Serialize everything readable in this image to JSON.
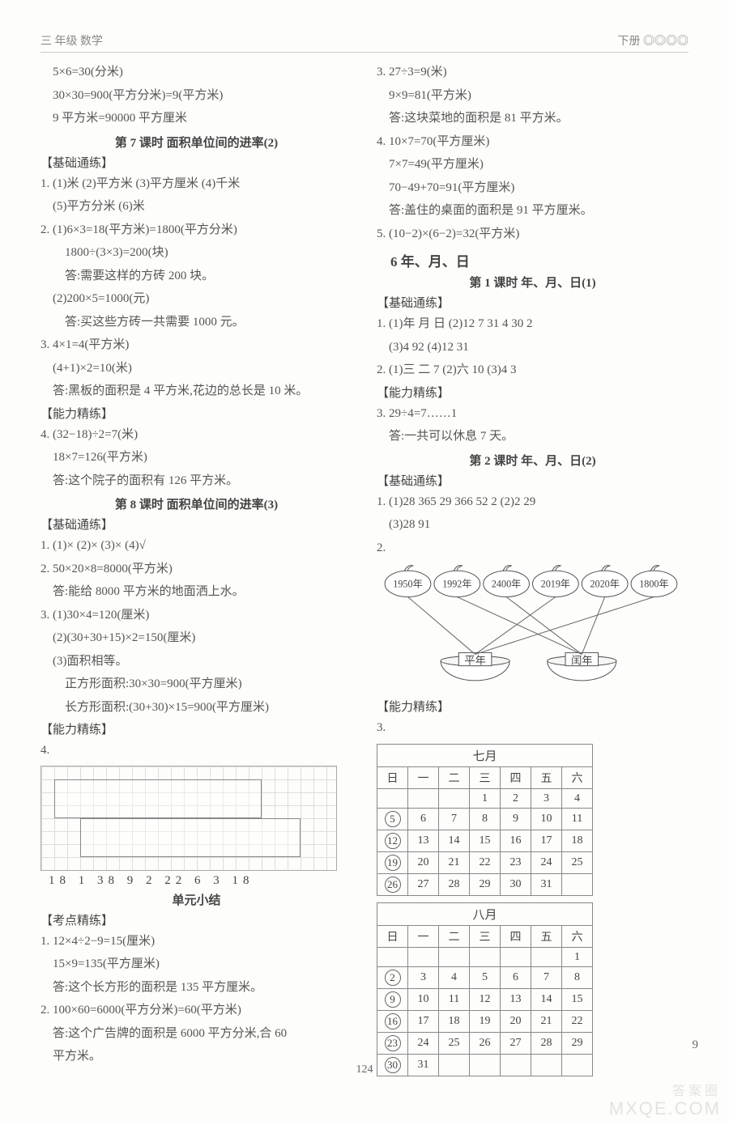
{
  "header": {
    "left": "三  年级  数学",
    "right": "下册 ◎◎◎◎"
  },
  "left_col": {
    "L1": "5×6=30(分米)",
    "L2": "30×30=900(平方分米)=9(平方米)",
    "L3": "9 平方米=90000 平方厘米",
    "S1": "第 7 课时  面积单位间的进率(2)",
    "B1": "【基础通练】",
    "P1": "1. (1)米  (2)平方米  (3)平方厘米  (4)千米",
    "P1b": "(5)平方分米  (6)米",
    "P2": "2. (1)6×3=18(平方米)=1800(平方分米)",
    "P2b": "1800÷(3×3)=200(块)",
    "P2c": "答:需要这样的方砖 200 块。",
    "P2d": "(2)200×5=1000(元)",
    "P2e": "答:买这些方砖一共需要 1000 元。",
    "P3": "3. 4×1=4(平方米)",
    "P3b": "(4+1)×2=10(米)",
    "P3c": "答:黑板的面积是 4 平方米,花边的总长是 10 米。",
    "B2": "【能力精练】",
    "P4": "4. (32−18)÷2=7(米)",
    "P4b": "18×7=126(平方米)",
    "P4c": "答:这个院子的面积有 126 平方米。",
    "S2": "第 8 课时  面积单位间的进率(3)",
    "B3": "【基础通练】",
    "Q1": "1. (1)×  (2)×  (3)×  (4)√",
    "Q2": "2. 50×20×8=8000(平方米)",
    "Q2b": "答:能给 8000 平方米的地面洒上水。",
    "Q3": "3. (1)30×4=120(厘米)",
    "Q3b": "(2)(30+30+15)×2=150(厘米)",
    "Q3c": "(3)面积相等。",
    "Q3d": "正方形面积:30×30=900(平方厘米)",
    "Q3e": "长方形面积:(30+30)×15=900(平方厘米)",
    "B4": "【能力精练】",
    "Q4": "4.",
    "strip": "18  1  38  9  2  22  6  3  18",
    "S3": "单元小结",
    "B5": "【考点精练】",
    "R1": "1. 12×4÷2−9=15(厘米)",
    "R1b": "15×9=135(平方厘米)",
    "R1c": "答:这个长方形的面积是 135 平方厘米。",
    "R2": "2. 100×60=6000(平方分米)=60(平方米)",
    "R2b": "答:这个广告牌的面积是 6000 平方分米,合 60",
    "R2c": "平方米。"
  },
  "right_col": {
    "T1": "3. 27÷3=9(米)",
    "T1b": "9×9=81(平方米)",
    "T1c": "答:这块菜地的面积是 81 平方米。",
    "T2": "4. 10×7=70(平方厘米)",
    "T2b": "7×7=49(平方厘米)",
    "T2c": "70−49+70=91(平方厘米)",
    "T2d": "答:盖住的桌面的面积是 91 平方厘米。",
    "T3": "5. (10−2)×(6−2)=32(平方米)",
    "CH": "6  年、月、日",
    "S4": "第 1 课时  年、月、日(1)",
    "B6": "【基础通练】",
    "U1": "1. (1)年  月  日  (2)12  7  31  4  30  2",
    "U1b": "(3)4  92  (4)12  31",
    "U2": "2. (1)三  二  7  (2)六  10  (3)4  3",
    "B7": "【能力精练】",
    "U3": "3. 29÷4=7……1",
    "U3b": "答:一共可以休息 7 天。",
    "S5": "第 2 课时  年、月、日(2)",
    "B8": "【基础通练】",
    "V1": "1. (1)28  365  29  366  52  2  (2)2  29",
    "V1b": "(3)28  91",
    "V2": "2.",
    "bowl": {
      "years": [
        "1950年",
        "1992年",
        "2400年",
        "2019年",
        "2020年",
        "1800年"
      ],
      "left_label": "平年",
      "right_label": "闰年",
      "colors": {
        "oval_fill": "#ffffff",
        "oval_stroke": "#555555",
        "line": "#666666",
        "bowl_stroke": "#555555"
      }
    },
    "B9": "【能力精练】",
    "W3": "3.",
    "cal1": {
      "title": "七月",
      "headers": [
        "日",
        "一",
        "二",
        "三",
        "四",
        "五",
        "六"
      ],
      "rows": [
        [
          "",
          "",
          "",
          "1",
          "2",
          "3",
          "4"
        ],
        [
          "(5)",
          "6",
          "7",
          "8",
          "9",
          "10",
          "11"
        ],
        [
          "(12)",
          "13",
          "14",
          "15",
          "16",
          "17",
          "18"
        ],
        [
          "(19)",
          "20",
          "21",
          "22",
          "23",
          "24",
          "25"
        ],
        [
          "(26)",
          "27",
          "28",
          "29",
          "30",
          "31",
          ""
        ]
      ]
    },
    "cal2": {
      "title": "八月",
      "headers": [
        "日",
        "一",
        "二",
        "三",
        "四",
        "五",
        "六"
      ],
      "rows": [
        [
          "",
          "",
          "",
          "",
          "",
          "",
          "1"
        ],
        [
          "(2)",
          "3",
          "4",
          "5",
          "6",
          "7",
          "8"
        ],
        [
          "(9)",
          "10",
          "11",
          "12",
          "13",
          "14",
          "15"
        ],
        [
          "(16)",
          "17",
          "18",
          "19",
          "20",
          "21",
          "22"
        ],
        [
          "(23)",
          "24",
          "25",
          "26",
          "27",
          "28",
          "29"
        ],
        [
          "(30)",
          "31",
          "",
          "",
          "",
          "",
          ""
        ]
      ]
    }
  },
  "footer": {
    "page": "124",
    "side": "9",
    "wm1": "答案圈",
    "wm2": "MXQE.COM"
  }
}
